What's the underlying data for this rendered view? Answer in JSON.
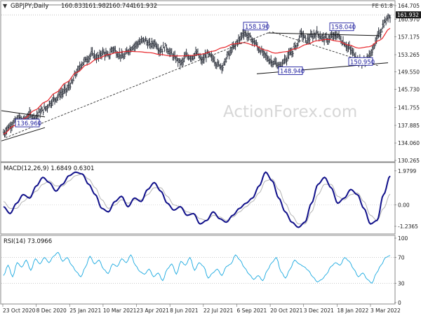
{
  "header": {
    "symbol": "GBPJPY,Daily",
    "open": "160.833",
    "high": "161.982",
    "low": "160.744",
    "close": "161.932",
    "fe_label": "FE 61.8"
  },
  "watermark": "ActionForex.com",
  "chart_data": {
    "type": "line",
    "colors": {
      "price": "#2a2f3a",
      "ma": "#e8262b",
      "macd": "#10108a",
      "signal": "#b4b4b4",
      "rsi": "#1aa9e0",
      "box_border": "#1c1c9e"
    },
    "price_panel": {
      "ylim": [
        130.265,
        164.705
      ],
      "y_ticks": [
        "164.705",
        "161.932",
        "160.970",
        "157.175",
        "153.265",
        "149.550",
        "145.730",
        "141.755",
        "137.885",
        "134.060",
        "130.265"
      ],
      "last_value": "161.932",
      "fe_level": 164.705,
      "annotations": [
        "158.190",
        "158.040",
        "148.940",
        "150.950",
        "136.960"
      ],
      "price_path": [
        136.2,
        137.5,
        138.6,
        139.4,
        139.0,
        140.2,
        139.6,
        140.8,
        141.6,
        142.8,
        143.8,
        144.8,
        145.6,
        147.0,
        149.4,
        151.3,
        152.4,
        153.4,
        152.6,
        153.8,
        153.0,
        154.6,
        153.4,
        152.8,
        154.3,
        155.2,
        155.9,
        156.5,
        155.4,
        155.8,
        154.2,
        155.0,
        153.6,
        152.4,
        151.4,
        153.0,
        152.8,
        153.5,
        152.0,
        153.4,
        152.6,
        151.1,
        150.8,
        153.2,
        154.8,
        156.4,
        158.1,
        157.2,
        156.0,
        154.4,
        153.2,
        152.0,
        151.4,
        150.6,
        152.4,
        153.5,
        155.2,
        157.8,
        156.4,
        157.2,
        158.0,
        157.0,
        156.6,
        157.2,
        157.5,
        156.0,
        154.8,
        153.6,
        152.0,
        151.6,
        152.8,
        155.4,
        158.0,
        160.4,
        161.9
      ],
      "ma_path": [
        136.0,
        137.8,
        139.4,
        141.2,
        143.0,
        145.0,
        147.2,
        149.4,
        151.1,
        152.4,
        153.3,
        153.8,
        154.0,
        153.9,
        153.7,
        153.3,
        153.0,
        153.0,
        153.1,
        153.4,
        154.0,
        154.8,
        155.6,
        155.9,
        155.3,
        154.3,
        153.6,
        153.9,
        154.6,
        155.5,
        156.3,
        156.6,
        156.2,
        155.4,
        154.7,
        155.0,
        156.4,
        159.0
      ],
      "channel_upper": [
        158.0,
        157.4
      ],
      "channel_lower": [
        149.1,
        151.5
      ],
      "wedge_top": [
        140.8,
        140.8
      ],
      "wedge_bottom": [
        134.5,
        137.4
      ],
      "trend_line": [
        135.2,
        158.2
      ],
      "fall_line": [
        158.2,
        150.8
      ]
    },
    "macd_panel": {
      "title": "MACD(12,26,9) 1.6849 0.6301",
      "ylim": [
        -1.6,
        2.3
      ],
      "y_ticks": [
        "1.9799",
        "0.00",
        "-1.2365"
      ],
      "macd_values": [
        -0.1,
        -0.5,
        0.1,
        0.6,
        0.4,
        1.1,
        1.6,
        1.3,
        0.8,
        1.2,
        1.7,
        1.9,
        1.8,
        1.2,
        0.6,
        -0.2,
        -0.4,
        0.2,
        0.5,
        -0.1,
        0.4,
        0.2,
        0.9,
        1.3,
        0.8,
        0.1,
        -0.3,
        -0.1,
        -0.6,
        -0.5,
        -1.1,
        -0.9,
        -0.4,
        -0.8,
        -1.0,
        -0.6,
        -0.2,
        0.1,
        0.4,
        1.1,
        1.9,
        1.4,
        0.4,
        -0.4,
        -1.0,
        -1.3,
        -1.0,
        0.1,
        1.2,
        1.6,
        1.0,
        0.1,
        0.4,
        0.9,
        0.6,
        -0.2,
        -1.1,
        -0.9,
        0.6,
        1.68
      ],
      "signal_values": [
        0.2,
        -0.2,
        -0.2,
        0.2,
        0.5,
        0.8,
        1.2,
        1.4,
        1.1,
        1.1,
        1.4,
        1.7,
        1.8,
        1.5,
        1.0,
        0.3,
        -0.2,
        0.0,
        0.3,
        0.1,
        0.3,
        0.3,
        0.6,
        1.0,
        1.0,
        0.5,
        0.0,
        -0.1,
        -0.4,
        -0.5,
        -0.8,
        -0.9,
        -0.6,
        -0.7,
        -0.9,
        -0.7,
        -0.4,
        -0.1,
        0.2,
        0.7,
        1.4,
        1.5,
        0.9,
        0.1,
        -0.6,
        -1.1,
        -1.1,
        -0.4,
        0.6,
        1.2,
        1.2,
        0.5,
        0.3,
        0.6,
        0.7,
        0.2,
        -0.6,
        -0.9,
        -0.2,
        0.63
      ]
    },
    "rsi_panel": {
      "title": "RSI(14) 73.0966",
      "ylim": [
        0,
        100
      ],
      "y_ticks": [
        "100",
        "70",
        "30",
        "0"
      ],
      "levels": [
        70,
        30
      ],
      "rsi_values": [
        42,
        58,
        40,
        62,
        55,
        66,
        50,
        68,
        60,
        70,
        62,
        72,
        78,
        64,
        70,
        58,
        48,
        40,
        55,
        72,
        60,
        66,
        52,
        45,
        60,
        56,
        68,
        62,
        74,
        58,
        48,
        44,
        52,
        40,
        46,
        34,
        52,
        60,
        44,
        64,
        58,
        70,
        50,
        62,
        56,
        38,
        46,
        52,
        42,
        56,
        60,
        74,
        66,
        54,
        44,
        36,
        42,
        34,
        50,
        62,
        70,
        48,
        38,
        52,
        66,
        60,
        56,
        50,
        40,
        32,
        36,
        44,
        56,
        62,
        58,
        70,
        64,
        52,
        40,
        46,
        36,
        30,
        46,
        58,
        70,
        73
      ]
    },
    "x_ticks": [
      "23 Oct 2020",
      "8 Dec 2020",
      "25 Jan 2021",
      "10 Mar 2021",
      "23 Apr 2021",
      "8 Jun 2021",
      "22 Jul 2021",
      "6 Sep 2021",
      "20 Oct 2021",
      "3 Dec 2021",
      "18 Jan 2022",
      "3 Mar 2022"
    ]
  }
}
